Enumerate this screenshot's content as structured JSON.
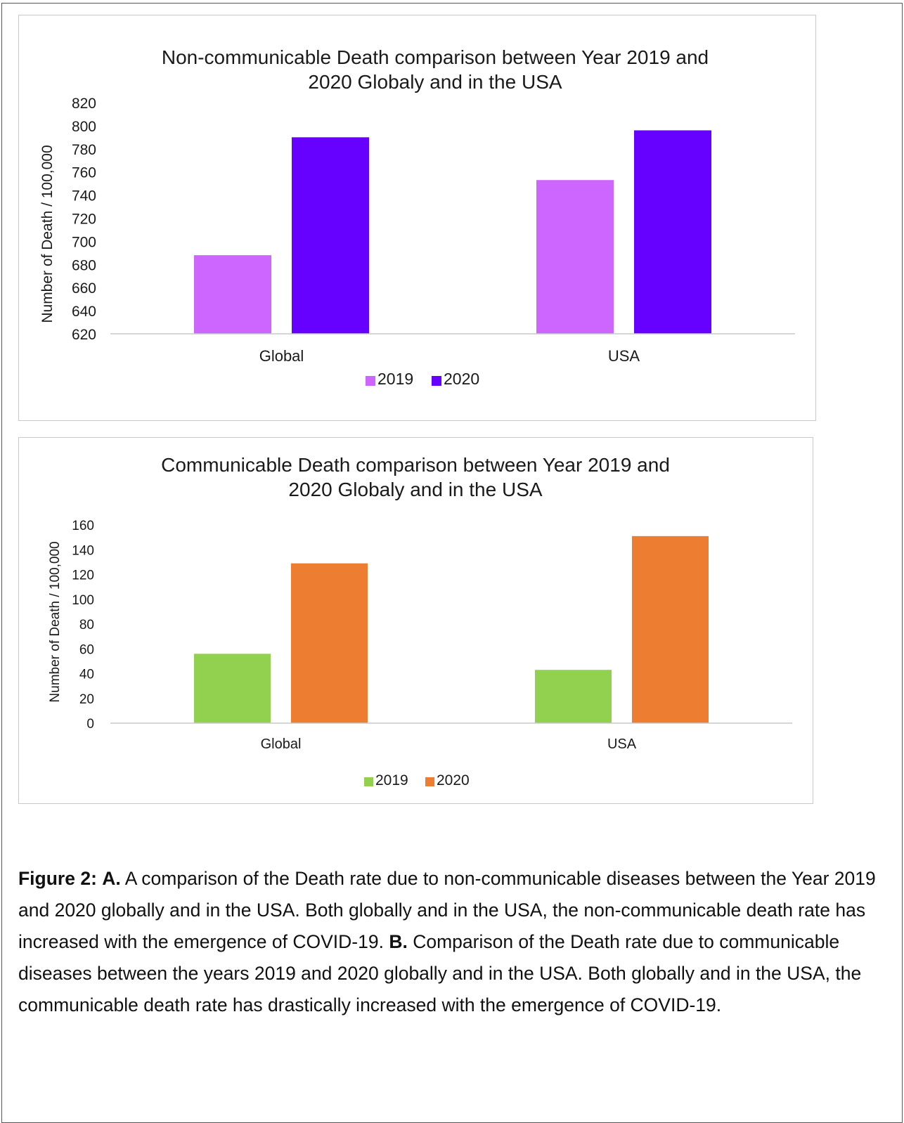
{
  "colors": {
    "a_2019": "#cc66ff",
    "a_2020": "#6600ff",
    "b_2019": "#92d050",
    "b_2020": "#ed7d31"
  },
  "chart_data": [
    {
      "type": "bar",
      "title_lines": [
        "Non-communicable Death comparison between Year 2019 and",
        "2020 Globaly and in the USA"
      ],
      "ylabel": "Number of Death / 100,000",
      "xlabel": "",
      "categories": [
        "Global",
        "USA"
      ],
      "series": [
        {
          "name": "2019",
          "values": [
            688,
            753
          ]
        },
        {
          "name": "2020",
          "values": [
            790,
            796
          ]
        }
      ],
      "ylim": [
        620,
        820
      ],
      "yticks": [
        620,
        640,
        660,
        680,
        700,
        720,
        740,
        760,
        780,
        800,
        820
      ],
      "grid": false,
      "legend": "bottom-center"
    },
    {
      "type": "bar",
      "title_lines": [
        "Communicable Death comparison between Year 2019 and",
        "2020 Globaly and in the USA"
      ],
      "ylabel": "Number of Death / 100,000",
      "xlabel": "",
      "categories": [
        "Global",
        "USA"
      ],
      "series": [
        {
          "name": "2019",
          "values": [
            56,
            43
          ]
        },
        {
          "name": "2020",
          "values": [
            129,
            151
          ]
        }
      ],
      "ylim": [
        0,
        160
      ],
      "yticks": [
        0,
        20,
        40,
        60,
        80,
        100,
        120,
        140,
        160
      ],
      "grid": false,
      "legend": "bottom-center"
    }
  ],
  "caption": {
    "figure_label": "Figure 2:",
    "a_label": "A.",
    "a_text": "A comparison of the Death rate due to non-communicable diseases between the Year 2019 and 2020 globally and in the USA. Both globally and in the USA, the non-communicable death rate has increased with the emergence of COVID-19.",
    "b_label": "B.",
    "b_text": "Comparison of the Death rate due to communicable diseases between the years 2019 and 2020 globally and in the USA. Both globally and in the USA, the communicable death rate has drastically increased with the emergence of COVID-19."
  }
}
